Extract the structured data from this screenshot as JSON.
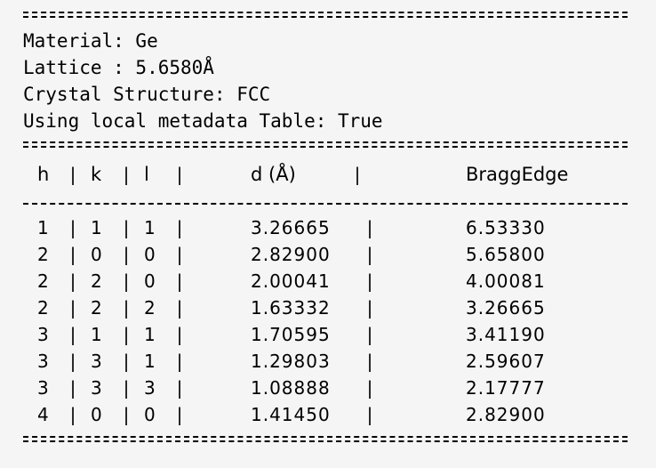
{
  "metadata": {
    "material": "Material: Ge",
    "lattice": "Lattice : 5.6580Å",
    "structure": "Crystal Structure: FCC",
    "local_table": "Using local metadata Table: True"
  },
  "table": {
    "headers": [
      "h",
      "k",
      "l",
      "d (Å)",
      "BraggEdge"
    ],
    "rows": [
      [
        "1",
        "1",
        "1",
        "3.26665",
        "6.53330"
      ],
      [
        "2",
        "0",
        "0",
        "2.82900",
        "5.65800"
      ],
      [
        "2",
        "2",
        "0",
        "2.00041",
        "4.00081"
      ],
      [
        "2",
        "2",
        "2",
        "1.63332",
        "3.26665"
      ],
      [
        "3",
        "1",
        "1",
        "1.70595",
        "3.41190"
      ],
      [
        "3",
        "3",
        "1",
        "1.29803",
        "2.59607"
      ],
      [
        "3",
        "3",
        "3",
        "1.08888",
        "2.17777"
      ],
      [
        "4",
        "0",
        "0",
        "1.41450",
        "2.82900"
      ]
    ]
  },
  "separator_char": "|",
  "colors": {
    "background": "#f5f5f5",
    "text": "#000000"
  }
}
